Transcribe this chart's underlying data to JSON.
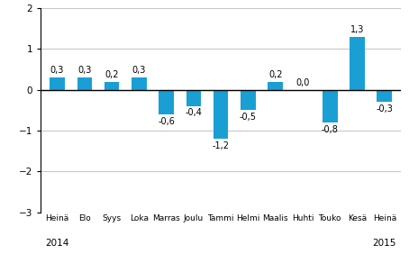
{
  "categories": [
    "Heinä",
    "Elo",
    "Syys",
    "Loka",
    "Marras",
    "Joulu",
    "Tammi",
    "Helmi",
    "Maalis",
    "Huhti",
    "Touko",
    "Kesä",
    "Heinä"
  ],
  "values": [
    0.3,
    0.3,
    0.2,
    0.3,
    -0.6,
    -0.4,
    -1.2,
    -0.5,
    0.2,
    0.0,
    -0.8,
    1.3,
    -0.3
  ],
  "bar_color": "#1a9fd4",
  "ylim": [
    -3,
    2
  ],
  "yticks": [
    -3,
    -2,
    -1,
    0,
    1,
    2
  ],
  "label_fontsize": 6.5,
  "tick_fontsize": 7.5,
  "year_fontsize": 7.5,
  "value_fontsize": 7.0,
  "background_color": "#ffffff",
  "grid_color": "#c8c8c8",
  "bar_width": 0.55
}
